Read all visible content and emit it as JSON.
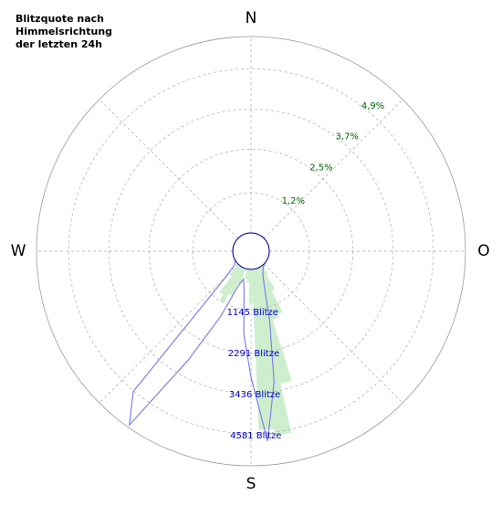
{
  "chart_data": {
    "type": "polar",
    "title": [
      "Blitzquote nach",
      "Himmelsrichtung",
      "der letzten 24h"
    ],
    "direction_labels": [
      "N",
      "O",
      "S",
      "W"
    ],
    "direction_angles": [
      0,
      90,
      180,
      270
    ],
    "x": [
      0,
      5,
      10,
      15,
      20,
      25,
      30,
      35,
      40,
      45,
      50,
      55,
      60,
      65,
      70,
      75,
      80,
      85,
      90,
      95,
      100,
      105,
      110,
      115,
      120,
      125,
      130,
      135,
      140,
      145,
      150,
      155,
      160,
      165,
      170,
      175,
      180,
      185,
      190,
      195,
      200,
      205,
      210,
      215,
      220,
      225,
      230,
      235,
      240,
      245,
      250,
      255,
      260,
      265,
      270,
      275,
      280,
      285,
      290,
      295,
      300,
      305,
      310,
      315,
      320,
      325,
      330,
      335,
      340,
      345,
      350,
      355
    ],
    "xlim": [
      0,
      360
    ],
    "series": [
      {
        "name": "Blitzquote",
        "kind": "wedge",
        "color": "#cdeecd",
        "values": [
          0,
          0,
          0,
          0,
          0,
          0,
          0,
          0,
          0,
          0,
          0,
          0,
          0,
          0,
          0,
          0,
          0,
          0,
          0,
          0,
          0,
          0,
          0,
          0,
          0,
          0,
          0,
          0,
          0,
          0.3,
          0.8,
          1.5,
          1.6,
          3.5,
          5.0,
          4.8,
          1.0,
          0.4,
          0.3,
          0,
          0.5,
          0.9,
          1.2,
          1.0,
          0.4,
          0,
          0,
          0,
          0,
          0,
          0,
          0,
          0,
          0,
          0,
          0,
          0,
          0,
          0,
          0,
          0,
          0,
          0,
          0,
          0,
          0,
          0,
          0,
          0,
          0,
          0,
          0
        ],
        "ylim": [
          0,
          5.86
        ],
        "yticks": [
          {
            "value": 1.2,
            "label": "1,2%"
          },
          {
            "value": 2.5,
            "label": "2,5%"
          },
          {
            "value": 3.7,
            "label": "3,7%"
          },
          {
            "value": 4.9,
            "label": "4,9%"
          }
        ],
        "tick_color": "#006400"
      },
      {
        "name": "Blitze",
        "kind": "line",
        "color": "#8080ee",
        "values": [
          0,
          0,
          0,
          0,
          0,
          0,
          0,
          0,
          0,
          0,
          0,
          0,
          0,
          0,
          0,
          0,
          0,
          0,
          0,
          0,
          0,
          0,
          0,
          0,
          0,
          0,
          0,
          0,
          40,
          80,
          150,
          300,
          600,
          1500,
          3200,
          4800,
          3000,
          1800,
          600,
          300,
          500,
          1500,
          3000,
          5400,
          4600,
          400,
          100,
          30,
          0,
          0,
          0,
          0,
          0,
          0,
          0,
          0,
          0,
          0,
          0,
          0,
          0,
          0,
          0,
          0,
          0,
          0,
          0,
          0,
          0,
          0,
          0,
          0
        ],
        "ylim": [
          0,
          5470
        ],
        "yticks": [
          {
            "value": 1145,
            "label": "1145 Blitze"
          },
          {
            "value": 2291,
            "label": "2291 Blitze"
          },
          {
            "value": 3436,
            "label": "3436 Blitze"
          },
          {
            "value": 4581,
            "label": "4581 Blitze"
          }
        ],
        "tick_color": "#0000cc"
      }
    ]
  }
}
